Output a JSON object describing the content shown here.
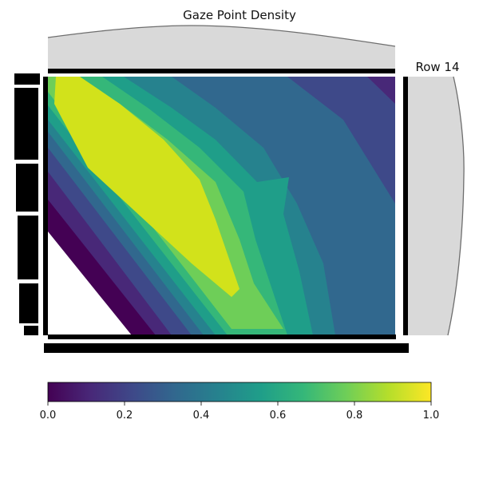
{
  "chart_data": {
    "type": "heatmap",
    "title": "Gaze Point Density",
    "panel_label": "Row 14",
    "colormap": "viridis",
    "levels": 10,
    "colorbar": {
      "range": [
        0.0,
        1.0
      ],
      "ticks": [
        0.0,
        0.2,
        0.4,
        0.6,
        0.8,
        1.0
      ],
      "tick_labels": [
        "0.0",
        "0.2",
        "0.4",
        "0.6",
        "0.8",
        "1.0"
      ],
      "orientation": "horizontal",
      "placement": "bottom"
    },
    "density_ridge": {
      "description_free": true,
      "peak_value": 1.0,
      "min_value": 0.0
    },
    "marginals": {
      "top": "x-density",
      "right": "y-density"
    }
  },
  "colors": {
    "viridis": [
      "#440154",
      "#482878",
      "#3e4989",
      "#31688e",
      "#26828e",
      "#1f9e89",
      "#35b779",
      "#6ece58",
      "#b5de2b",
      "#fde725"
    ],
    "marginal_fill": "#d9d9d9",
    "marginal_stroke": "#6e6e6e",
    "frame": "#000000"
  }
}
